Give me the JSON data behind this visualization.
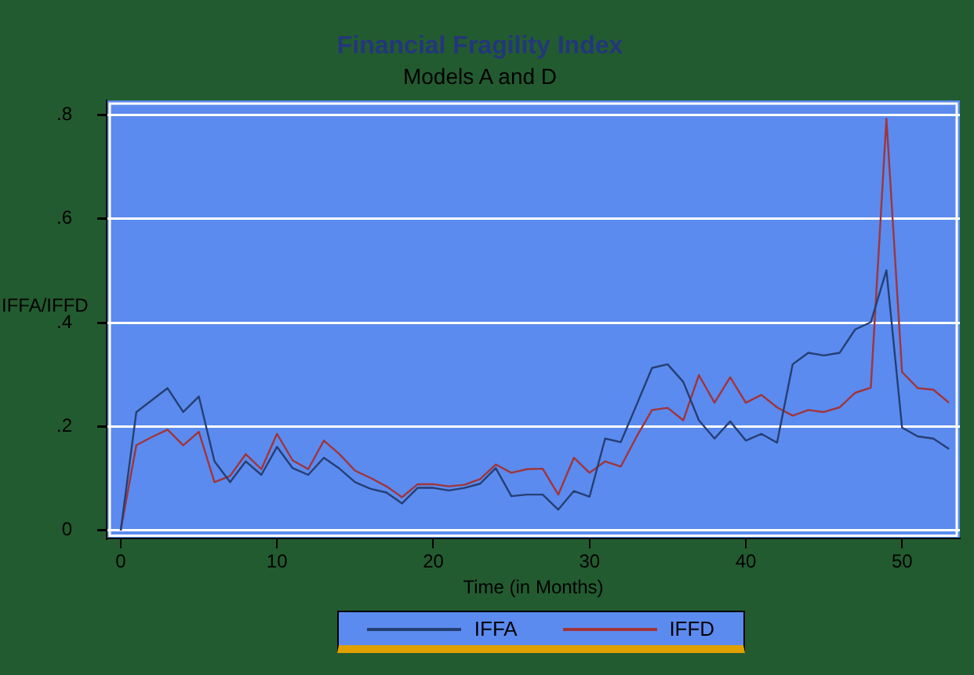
{
  "chart_data": {
    "type": "line",
    "title": "Financial Fragility Index",
    "subtitle": "Models A and D",
    "xlabel": "Time (in Months)",
    "ylabel": "IFFA/IFFD",
    "x": [
      0,
      1,
      2,
      3,
      4,
      5,
      6,
      7,
      8,
      9,
      10,
      11,
      12,
      13,
      14,
      15,
      16,
      17,
      18,
      19,
      20,
      21,
      22,
      23,
      24,
      25,
      26,
      27,
      28,
      29,
      30,
      31,
      32,
      33,
      34,
      35,
      36,
      37,
      38,
      39,
      40,
      41,
      42,
      43,
      44,
      45,
      46,
      47,
      48,
      49,
      50,
      51,
      52,
      53
    ],
    "series": [
      {
        "name": "IFFA",
        "color": "#263f73",
        "values": [
          0,
          0.228,
          0.251,
          0.274,
          0.228,
          0.258,
          0.133,
          0.093,
          0.133,
          0.107,
          0.161,
          0.12,
          0.107,
          0.14,
          0.119,
          0.093,
          0.08,
          0.073,
          0.052,
          0.082,
          0.082,
          0.077,
          0.082,
          0.09,
          0.12,
          0.066,
          0.069,
          0.069,
          0.04,
          0.076,
          0.065,
          0.177,
          0.17,
          0.241,
          0.313,
          0.32,
          0.286,
          0.212,
          0.177,
          0.21,
          0.173,
          0.186,
          0.169,
          0.32,
          0.342,
          0.337,
          0.342,
          0.387,
          0.401,
          0.501,
          0.198,
          0.181,
          0.177,
          0.157
        ]
      },
      {
        "name": "IFFD",
        "color": "#a0353a",
        "values": [
          0,
          0.164,
          0.18,
          0.194,
          0.164,
          0.19,
          0.093,
          0.105,
          0.147,
          0.118,
          0.186,
          0.135,
          0.118,
          0.173,
          0.147,
          0.115,
          0.101,
          0.085,
          0.064,
          0.089,
          0.089,
          0.085,
          0.088,
          0.099,
          0.127,
          0.111,
          0.118,
          0.119,
          0.069,
          0.14,
          0.111,
          0.133,
          0.123,
          0.18,
          0.232,
          0.236,
          0.212,
          0.299,
          0.246,
          0.295,
          0.246,
          0.261,
          0.237,
          0.221,
          0.232,
          0.228,
          0.237,
          0.265,
          0.275,
          0.793,
          0.305,
          0.274,
          0.271,
          0.246
        ]
      }
    ],
    "xlim": [
      -0.9,
      53.7
    ],
    "ylim": [
      -0.016,
      0.828
    ],
    "xticks": [
      0,
      10,
      20,
      30,
      40,
      50
    ],
    "yticks": [
      {
        "value": 0,
        "label": "0"
      },
      {
        "value": 0.2,
        "label": ".2"
      },
      {
        "value": 0.4,
        "label": ".4"
      },
      {
        "value": 0.6,
        "label": ".6"
      },
      {
        "value": 0.8,
        "label": ".8"
      }
    ],
    "grid": "y",
    "legend": "bottom",
    "marker": "none",
    "line_style": "solid"
  }
}
